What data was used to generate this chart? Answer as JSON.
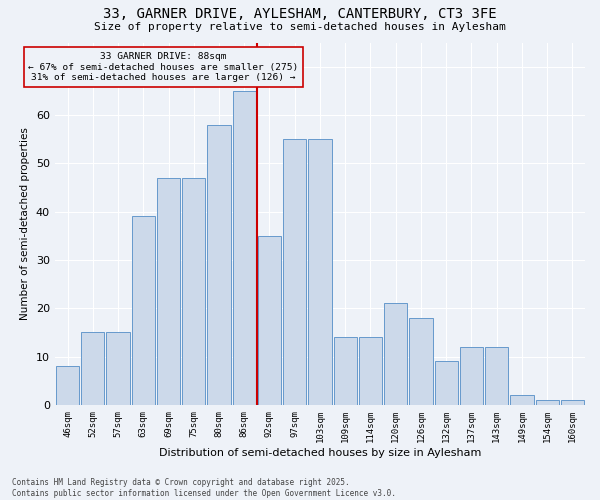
{
  "title": "33, GARNER DRIVE, AYLESHAM, CANTERBURY, CT3 3FE",
  "subtitle": "Size of property relative to semi-detached houses in Aylesham",
  "xlabel": "Distribution of semi-detached houses by size in Aylesham",
  "ylabel": "Number of semi-detached properties",
  "footer_line1": "Contains HM Land Registry data © Crown copyright and database right 2025.",
  "footer_line2": "Contains public sector information licensed under the Open Government Licence v3.0.",
  "annotation_line1": "33 GARNER DRIVE: 88sqm",
  "annotation_line2": "← 67% of semi-detached houses are smaller (275)",
  "annotation_line3": "31% of semi-detached houses are larger (126) →",
  "bar_labels": [
    "46sqm",
    "52sqm",
    "57sqm",
    "63sqm",
    "69sqm",
    "75sqm",
    "80sqm",
    "86sqm",
    "92sqm",
    "97sqm",
    "103sqm",
    "109sqm",
    "114sqm",
    "120sqm",
    "126sqm",
    "132sqm",
    "137sqm",
    "143sqm",
    "149sqm",
    "154sqm",
    "160sqm"
  ],
  "bar_values": [
    8,
    15,
    15,
    39,
    47,
    47,
    58,
    65,
    35,
    55,
    55,
    14,
    14,
    21,
    18,
    9,
    12,
    12,
    2,
    1,
    1
  ],
  "bar_color": "#ccd9ea",
  "bar_edge_color": "#6699cc",
  "marker_line_color": "#cc0000",
  "annotation_box_edge_color": "#cc0000",
  "background_color": "#eef2f8",
  "grid_color": "#ffffff",
  "ylim": [
    0,
    75
  ],
  "yticks": [
    0,
    10,
    20,
    30,
    40,
    50,
    60,
    70
  ]
}
